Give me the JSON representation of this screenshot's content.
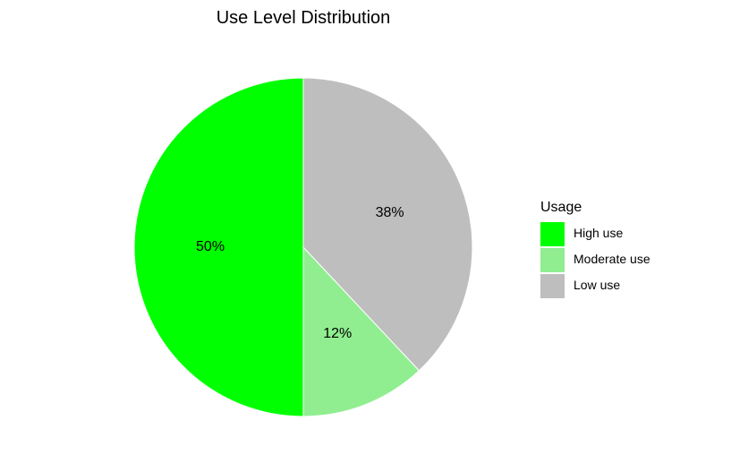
{
  "chart_data": {
    "type": "pie",
    "title": "Use Level Distribution",
    "legend_title": "Usage",
    "legend_position": "right",
    "start": "12 o'clock",
    "direction": "counterclockwise",
    "slices": [
      {
        "name": "High use",
        "value": 50,
        "label": "50%",
        "color": "#00FF00"
      },
      {
        "name": "Moderate use",
        "value": 12,
        "label": "12%",
        "color": "#90EE90"
      },
      {
        "name": "Low use",
        "value": 38,
        "label": "38%",
        "color": "#BEBEBE"
      }
    ]
  }
}
